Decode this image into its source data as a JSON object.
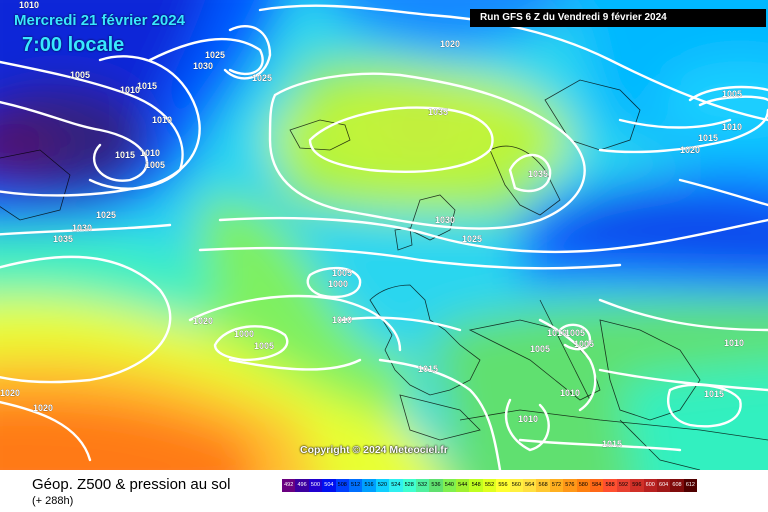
{
  "header": {
    "date": "Mercredi 21 février 2024",
    "time": "7:00 locale",
    "run": "Run GFS 6 Z du Vendredi 9 février 2024"
  },
  "copyright": "Copyright © 2024 Meteociel.fr",
  "footer": {
    "title": "Géop. Z500 & pression au sol",
    "subtitle": "(+ 288h)"
  },
  "legend": {
    "values": [
      "492",
      "496",
      "500",
      "504",
      "508",
      "512",
      "516",
      "520",
      "524",
      "528",
      "532",
      "536",
      "540",
      "544",
      "548",
      "552",
      "556",
      "560",
      "564",
      "568",
      "572",
      "576",
      "580",
      "584",
      "588",
      "592",
      "596",
      "600",
      "604",
      "608",
      "612"
    ],
    "colors": [
      "#6a0080",
      "#3c00a0",
      "#2000d0",
      "#0010f0",
      "#0040ff",
      "#0070ff",
      "#00a0ff",
      "#10d0ff",
      "#30f0f0",
      "#40ffd0",
      "#50f0a0",
      "#60e070",
      "#80f050",
      "#a0f030",
      "#c0ff20",
      "#e0ff20",
      "#ffff30",
      "#fff040",
      "#ffe040",
      "#ffc830",
      "#ffb020",
      "#ff9818",
      "#ff8010",
      "#ff6818",
      "#ff5030",
      "#e84030",
      "#d03028",
      "#b82020",
      "#a01818",
      "#800c0c",
      "#500000"
    ]
  },
  "isobar_labels": [
    "1010",
    "1005",
    "1015",
    "1010",
    "1015",
    "1010",
    "1005",
    "1025",
    "1030",
    "1025",
    "1020",
    "1035",
    "1035",
    "1030",
    "1025",
    "1005",
    "1000",
    "1010",
    "1020",
    "1000",
    "1005",
    "1015",
    "1020",
    "1020",
    "1005",
    "1010",
    "1015",
    "1020",
    "1010",
    "1005",
    "1005",
    "1005",
    "1010",
    "1015",
    "1010",
    "1025",
    "1030",
    "1035",
    "1015",
    "1010",
    "1010"
  ]
}
